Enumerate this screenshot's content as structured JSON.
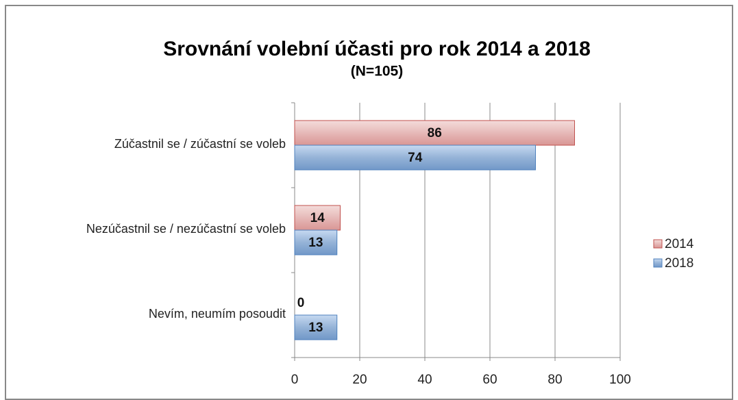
{
  "chart_data": {
    "type": "bar",
    "orientation": "horizontal",
    "title": "Srovnání volební účasti pro rok 2014 a 2018",
    "subtitle": "(N=105)",
    "categories": [
      "Zúčastnil se / zúčastní se voleb",
      "Nezúčastnil se / nezúčastní se voleb",
      "Nevím, neumím posoudit"
    ],
    "series": [
      {
        "name": "2014",
        "color": "#e6b9b8",
        "values": [
          86,
          14,
          0
        ]
      },
      {
        "name": "2018",
        "color": "#95b3d7",
        "values": [
          74,
          13,
          13
        ]
      }
    ],
    "xlim": [
      0,
      100
    ],
    "xticks": [
      0,
      20,
      40,
      60,
      80,
      100
    ],
    "grid": true,
    "legend": "right"
  }
}
